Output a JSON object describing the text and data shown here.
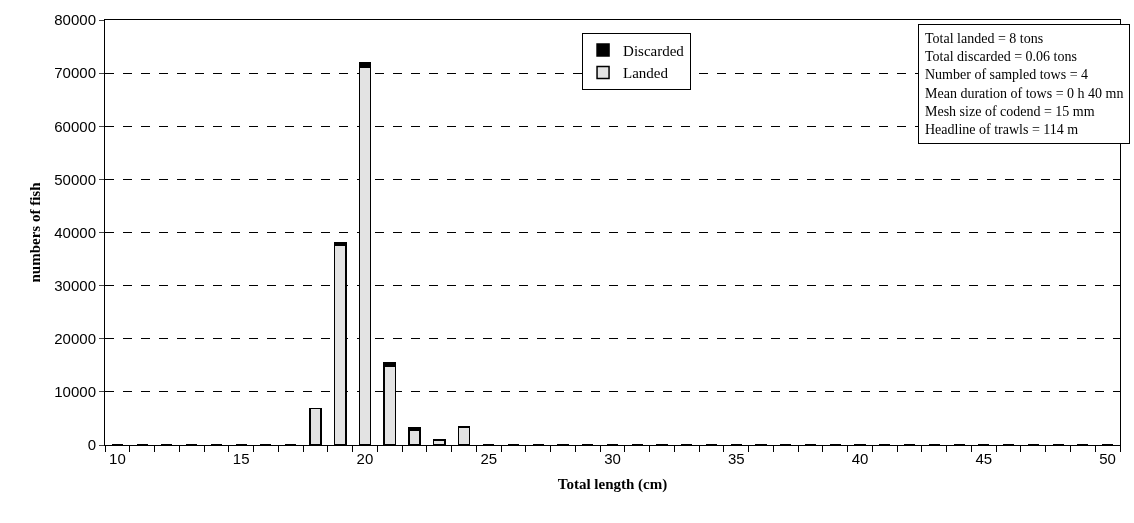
{
  "chart_data": {
    "type": "bar",
    "stacked": true,
    "xlabel": "Total length (cm)",
    "ylabel": "numbers of fish",
    "categories": [
      "10",
      null,
      null,
      null,
      null,
      "15",
      null,
      null,
      null,
      null,
      "20",
      null,
      null,
      null,
      null,
      "25",
      null,
      null,
      null,
      null,
      "30",
      null,
      null,
      null,
      null,
      "35",
      null,
      null,
      null,
      null,
      "40",
      null,
      null,
      null,
      null,
      "45",
      null,
      null,
      null,
      null,
      "50"
    ],
    "series": [
      {
        "name": "Landed",
        "color": "#e3e3e3",
        "values": [
          0,
          0,
          0,
          0,
          0,
          0,
          0,
          0,
          6900,
          37600,
          71100,
          14900,
          2800,
          900,
          3400,
          0,
          0,
          0,
          0,
          0,
          0,
          0,
          0,
          0,
          0,
          0,
          0,
          0,
          0,
          0,
          0,
          0,
          0,
          0,
          0,
          0,
          0,
          0,
          0,
          0,
          0
        ]
      },
      {
        "name": "Discarded",
        "color": "#000000",
        "values": [
          0,
          0,
          0,
          0,
          0,
          0,
          0,
          0,
          0,
          500,
          800,
          500,
          500,
          0,
          0,
          0,
          0,
          0,
          0,
          0,
          0,
          0,
          0,
          0,
          0,
          0,
          0,
          0,
          0,
          0,
          0,
          0,
          0,
          0,
          0,
          0,
          0,
          0,
          0,
          0,
          0
        ]
      }
    ],
    "ylim": [
      0,
      80000
    ],
    "yticks": [
      0,
      10000,
      20000,
      30000,
      40000,
      50000,
      60000,
      70000,
      80000
    ],
    "grid": "y",
    "legend": "top",
    "annotations": [
      "Total landed = 8 tons",
      "Total discarded = 0.06 tons",
      "Number of sampled tows = 4",
      "Mean duration of tows = 0 h 40 mn",
      "Mesh size of codend = 15 mm",
      "Headline of trawls = 114 m"
    ]
  }
}
